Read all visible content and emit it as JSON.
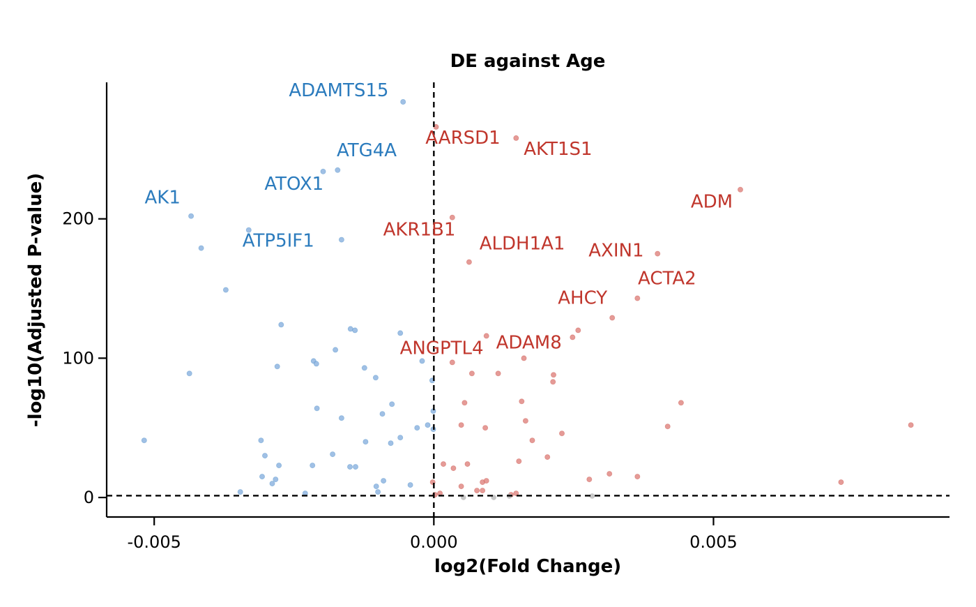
{
  "chart_data": {
    "type": "scatter",
    "title": "DE against Age",
    "xlabel": "log2(Fold Change)",
    "ylabel": "-log10(Adjusted P-value)",
    "xlim": [
      -0.00585,
      0.00922
    ],
    "ylim": [
      -14,
      298
    ],
    "x_ticks": [
      -0.005,
      0.0,
      0.005
    ],
    "x_tick_labels": [
      "-0.005",
      "0.000",
      "0.005"
    ],
    "y_ticks": [
      0,
      100,
      200
    ],
    "y_tick_labels": [
      "0",
      "100",
      "200"
    ],
    "reference_lines": {
      "x": 0.0,
      "y": 1.3
    },
    "grid": false,
    "legend": "none",
    "colors": {
      "down": "#2b7bbd",
      "up": "#c0362c",
      "ns": "#bdbdbd",
      "down_point": "#8fb5e0",
      "up_point": "#e08a85"
    },
    "series": [
      {
        "group": "down",
        "points": [
          [
            -0.00055,
            284
          ],
          [
            -0.00198,
            234
          ],
          [
            -0.00172,
            235
          ],
          [
            -0.00434,
            202
          ],
          [
            -0.00331,
            192
          ],
          [
            -0.00416,
            179
          ],
          [
            -0.00165,
            185
          ],
          [
            -0.00372,
            149
          ],
          [
            -0.00273,
            124
          ],
          [
            -0.00149,
            121
          ],
          [
            -0.00141,
            120
          ],
          [
            -0.0006,
            118
          ],
          [
            -0.00176,
            106
          ],
          [
            -0.00215,
            98
          ],
          [
            -0.0021,
            96
          ],
          [
            -0.0028,
            94
          ],
          [
            -0.00124,
            93
          ],
          [
            -0.00104,
            86
          ],
          [
            -0.00437,
            89
          ],
          [
            -0.00021,
            98
          ],
          [
            -3e-05,
            84
          ],
          [
            -0.00075,
            67
          ],
          [
            -0.00209,
            64
          ],
          [
            -0.00092,
            60
          ],
          [
            -0.00165,
            57
          ],
          [
            -1e-05,
            62
          ],
          [
            -0.0003,
            50
          ],
          [
            -0.00011,
            52
          ],
          [
            -1e-05,
            49
          ],
          [
            -0.0006,
            43
          ],
          [
            -0.00518,
            41
          ],
          [
            -0.00309,
            41
          ],
          [
            -0.00122,
            40
          ],
          [
            -0.00077,
            39
          ],
          [
            -0.00181,
            31
          ],
          [
            -0.00302,
            30
          ],
          [
            -0.0015,
            22
          ],
          [
            -0.0014,
            22
          ],
          [
            -0.00277,
            23
          ],
          [
            -0.00217,
            23
          ],
          [
            -0.00307,
            15
          ],
          [
            -0.00283,
            13
          ],
          [
            -0.00289,
            10
          ],
          [
            -0.0009,
            12
          ],
          [
            -0.00103,
            8
          ],
          [
            -0.00042,
            9
          ],
          [
            -0.00346,
            4
          ],
          [
            -0.0023,
            3
          ],
          [
            -0.001,
            4
          ]
        ]
      },
      {
        "group": "up",
        "points": [
          [
            4e-05,
            266
          ],
          [
            0.00147,
            258
          ],
          [
            0.00548,
            221
          ],
          [
            0.00033,
            201
          ],
          [
            0.004,
            175
          ],
          [
            0.00063,
            169
          ],
          [
            0.00364,
            143
          ],
          [
            0.00319,
            129
          ],
          [
            0.00258,
            120
          ],
          [
            0.00248,
            115
          ],
          [
            0.00094,
            116
          ],
          [
            0.00161,
            100
          ],
          [
            0.00033,
            97
          ],
          [
            0.00068,
            89
          ],
          [
            0.00115,
            89
          ],
          [
            0.00214,
            88
          ],
          [
            0.00213,
            83
          ],
          [
            0.00055,
            68
          ],
          [
            0.00157,
            69
          ],
          [
            0.00442,
            68
          ],
          [
            0.00049,
            52
          ],
          [
            0.00164,
            55
          ],
          [
            0.00418,
            51
          ],
          [
            0.00092,
            50
          ],
          [
            0.00176,
            41
          ],
          [
            0.00229,
            46
          ],
          [
            0.00853,
            52
          ],
          [
            0.00152,
            26
          ],
          [
            0.00203,
            29
          ],
          [
            0.00017,
            24
          ],
          [
            0.00035,
            21
          ],
          [
            0.0006,
            24
          ],
          [
            0.00278,
            13
          ],
          [
            0.00314,
            17
          ],
          [
            0.00364,
            15
          ],
          [
            0.00728,
            11
          ],
          [
            0.00087,
            11
          ],
          [
            0.00094,
            12
          ],
          [
            0.00049,
            8
          ],
          [
            0.00077,
            5
          ],
          [
            0.00087,
            5
          ],
          [
            0.00147,
            3
          ],
          [
            0.00138,
            2
          ],
          [
            0.00011,
            3
          ],
          [
            2e-05,
            2
          ],
          [
            -2e-05,
            11
          ]
        ]
      },
      {
        "group": "ns",
        "points": [
          [
            0.00053,
            0
          ],
          [
            0.00107,
            0
          ],
          [
            0.00283,
            1
          ],
          [
            0.00135,
            1
          ]
        ]
      }
    ],
    "labels": [
      {
        "text": "ADAMTS15",
        "group": "down",
        "x": -0.0017,
        "y": 288
      },
      {
        "text": "ATG4A",
        "group": "down",
        "x": -0.0012,
        "y": 245
      },
      {
        "text": "ATOX1",
        "group": "down",
        "x": -0.0025,
        "y": 221
      },
      {
        "text": "AK1",
        "group": "down",
        "x": -0.00485,
        "y": 211
      },
      {
        "text": "ATP5IF1",
        "group": "down",
        "x": -0.00278,
        "y": 180
      },
      {
        "text": "AARSD1",
        "group": "up",
        "x": 0.00052,
        "y": 254
      },
      {
        "text": "AKT1S1",
        "group": "up",
        "x": 0.00222,
        "y": 246
      },
      {
        "text": "ADM",
        "group": "up",
        "x": 0.00497,
        "y": 208
      },
      {
        "text": "AKR1B1",
        "group": "up",
        "x": -0.00026,
        "y": 188
      },
      {
        "text": "ALDH1A1",
        "group": "up",
        "x": 0.00158,
        "y": 178
      },
      {
        "text": "AXIN1",
        "group": "up",
        "x": 0.00326,
        "y": 173
      },
      {
        "text": "ACTA2",
        "group": "up",
        "x": 0.00417,
        "y": 153
      },
      {
        "text": "AHCY",
        "group": "up",
        "x": 0.00266,
        "y": 139
      },
      {
        "text": "ADAM8",
        "group": "up",
        "x": 0.0017,
        "y": 107
      },
      {
        "text": "ANGPTL4",
        "group": "up",
        "x": 0.00014,
        "y": 103
      }
    ]
  }
}
